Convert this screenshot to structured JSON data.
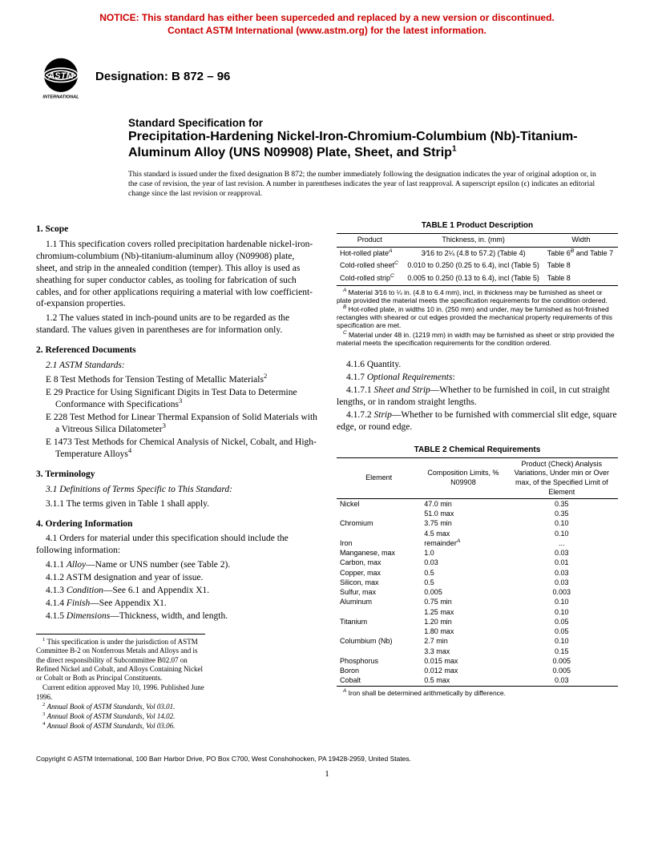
{
  "notice": {
    "line1": "NOTICE: This standard has either been superceded and replaced by a new version or discontinued.",
    "line2": "Contact ASTM International (www.astm.org) for the latest information."
  },
  "logo": {
    "top_text": "ASTM",
    "bottom_text": "INTERNATIONAL"
  },
  "designation": "Designation: B 872 – 96",
  "title": {
    "kicker": "Standard Specification for",
    "main": "Precipitation-Hardening Nickel-Iron-Chromium-Columbium (Nb)-Titanium-Aluminum Alloy (UNS N09908) Plate, Sheet, and Strip",
    "sup": "1"
  },
  "issuance": "This standard is issued under the fixed designation B 872; the number immediately following the designation indicates the year of original adoption or, in the case of revision, the year of last revision. A number in parentheses indicates the year of last reapproval. A superscript epsilon (ϵ) indicates an editorial change since the last revision or reapproval.",
  "left": {
    "s1_head": "1. Scope",
    "s1_1": "1.1 This specification covers rolled precipitation hardenable nickel-iron-chromium-columbium (Nb)-titanium-aluminum alloy (N09908) plate, sheet, and strip in the annealed condition (temper). This alloy is used as sheathing for super conductor cables, as tooling for fabrication of such cables, and for other applications requiring a material with low coefficient-of-expansion properties.",
    "s1_2": "1.2 The values stated in inch-pound units are to be regarded as the standard. The values given in parentheses are for information only.",
    "s2_head": "2. Referenced Documents",
    "s2_1": "2.1 ASTM Standards:",
    "e8": "E 8  Test Methods for Tension Testing of Metallic Materials",
    "e8_sup": "2",
    "e29": "E 29  Practice for Using Significant Digits in Test Data to Determine Conformance with Specifications",
    "e29_sup": "3",
    "e228": "E 228  Test Method for Linear Thermal Expansion of Solid Materials with a Vitreous Silica Dilatometer",
    "e228_sup": "3",
    "e1473": "E 1473  Test Methods for Chemical Analysis of Nickel, Cobalt, and High-Temperature Alloys",
    "e1473_sup": "4",
    "s3_head": "3. Terminology",
    "s3_1": "3.1 Definitions of Terms Specific to This Standard:",
    "s3_1_1": "3.1.1 The terms given in Table 1 shall apply.",
    "s4_head": "4. Ordering Information",
    "s4_1": "4.1 Orders for material under this specification should include the following information:",
    "s4_1_1": "4.1.1 Alloy—Name or UNS number (see Table 2).",
    "s4_1_2": "4.1.2 ASTM designation and year of issue.",
    "s4_1_3": "4.1.3 Condition—See 6.1 and Appendix X1.",
    "s4_1_4": "4.1.4 Finish—See Appendix X1.",
    "s4_1_5": "4.1.5 Dimensions—Thickness, width, and length."
  },
  "footnotes": {
    "f1": "This specification is under the jurisdiction of ASTM Committee B-2 on Nonferrous Metals and Alloys and is the direct responsibility of Subcommittee B02.07 on Refined Nickel and Cobalt, and Alloys Containing Nickel or Cobalt or Both as Principal Constituents.",
    "f1b": "Current edition approved May 10, 1996. Published June 1996.",
    "f2": "Annual Book of ASTM Standards, Vol 03.01.",
    "f3": "Annual Book of ASTM Standards, Vol 14.02.",
    "f4": "Annual Book of ASTM Standards, Vol 03.06."
  },
  "table1": {
    "title": "TABLE 1  Product Description",
    "h1": "Product",
    "h2": "Thickness, in. (mm)",
    "h3": "Width",
    "rows": [
      {
        "p": "Hot-rolled plate",
        "ps": "A",
        "t": "3⁄16 to 2¼ (4.8 to 57.2) (Table 4)",
        "w": "Table 6",
        "ws": "B",
        "w2": " and Table 7"
      },
      {
        "p": "Cold-rolled sheet",
        "ps": "C",
        "t": "0.010 to 0.250 (0.25 to 6.4), incl (Table 5)",
        "w": "Table 8",
        "ws": "",
        "w2": ""
      },
      {
        "p": "Cold-rolled strip",
        "ps": "C",
        "t": "0.005 to 0.250 (0.13 to 6.4), incl (Table 5)",
        "w": "Table 8",
        "ws": "",
        "w2": ""
      }
    ],
    "nA": "Material 3⁄16 to ¼ in. (4.8 to 6.4 mm), incl, in thickness may be furnished as sheet or plate provided the material meets the specification requirements for the condition ordered.",
    "nB": "Hot-rolled plate, in widths 10 in. (250 mm) and under, may be furnished as hot-finished rectangles with sheared or cut edges provided the mechanical property requirements of this specification are met.",
    "nC": "Material under 48 in. (1219 mm) in width may be furnished as sheet or strip provided the material meets the specification requirements for the condition ordered."
  },
  "right": {
    "r4_1_6": "4.1.6 Quantity.",
    "r4_1_7": "4.1.7 Optional Requirements:",
    "r4_1_7_1": "4.1.7.1 Sheet and Strip—Whether to be furnished in coil, in cut straight lengths, or in random straight lengths.",
    "r4_1_7_2": "4.1.7.2 Strip—Whether to be furnished with commercial slit edge, square edge, or round edge."
  },
  "table2": {
    "title": "TABLE 2  Chemical Requirements",
    "h1": "Element",
    "h2": "Composition Limits, % N09908",
    "h3": "Product (Check) Analysis Variations, Under min or Over max, of the Specified Limit of Element",
    "rows": [
      {
        "e": "Nickel",
        "c": "47.0 min",
        "v": "0.35"
      },
      {
        "e": "",
        "c": "51.0 max",
        "v": "0.35"
      },
      {
        "e": "Chromium",
        "c": "3.75 min",
        "v": "0.10"
      },
      {
        "e": "",
        "c": "4.5 max",
        "v": "0.10"
      },
      {
        "e": "Iron",
        "c": "remainderA",
        "v": "..."
      },
      {
        "e": "Manganese, max",
        "c": "1.0",
        "v": "0.03"
      },
      {
        "e": "Carbon, max",
        "c": "0.03",
        "v": "0.01"
      },
      {
        "e": "Copper, max",
        "c": "0.5",
        "v": "0.03"
      },
      {
        "e": "Silicon, max",
        "c": "0.5",
        "v": "0.03"
      },
      {
        "e": "Sulfur, max",
        "c": "0.005",
        "v": "0.003"
      },
      {
        "e": "Aluminum",
        "c": "0.75 min",
        "v": "0.10"
      },
      {
        "e": "",
        "c": "1.25 max",
        "v": "0.10"
      },
      {
        "e": "Titanium",
        "c": "1.20 min",
        "v": "0.05"
      },
      {
        "e": "",
        "c": "1.80 max",
        "v": "0.05"
      },
      {
        "e": "Columbium (Nb)",
        "c": "2.7 min",
        "v": "0.10"
      },
      {
        "e": "",
        "c": "3.3 max",
        "v": "0.15"
      },
      {
        "e": "Phosphorus",
        "c": "0.015 max",
        "v": "0.005"
      },
      {
        "e": "Boron",
        "c": "0.012 max",
        "v": "0.005"
      },
      {
        "e": "Cobalt",
        "c": "0.5 max",
        "v": "0.03"
      }
    ],
    "nA": "Iron shall be determined arithmetically by difference."
  },
  "copyright": "Copyright © ASTM International, 100 Barr Harbor Drive, PO Box C700, West Conshohocken, PA 19428-2959, United States.",
  "pagenum": "1"
}
